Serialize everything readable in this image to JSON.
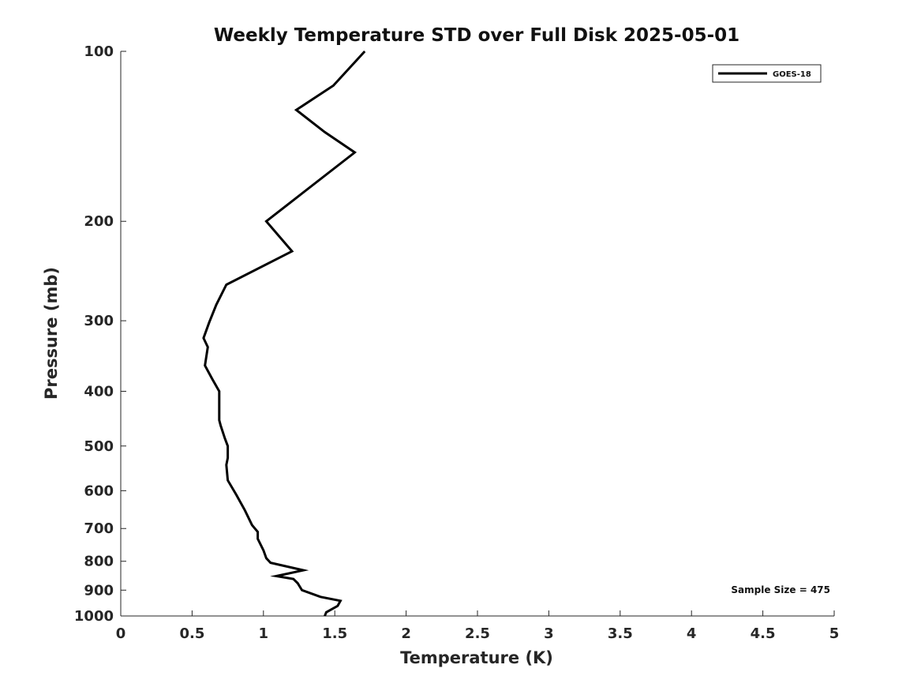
{
  "chart_data": {
    "type": "line",
    "title": "Weekly Temperature STD over Full Disk 2025-05-01",
    "xlabel": "Temperature (K)",
    "ylabel": "Pressure (mb)",
    "xlim": [
      0,
      5
    ],
    "ylim": [
      100,
      1000
    ],
    "yscale": "log",
    "y_inverted": true,
    "grid": false,
    "legend_position": "top-right",
    "x_ticks": [
      "0",
      "0.5",
      "1",
      "1.5",
      "2",
      "2.5",
      "3",
      "3.5",
      "4",
      "4.5",
      "5"
    ],
    "y_ticks": [
      "100",
      "200",
      "300",
      "400",
      "500",
      "600",
      "700",
      "800",
      "900",
      "1000"
    ],
    "annotation": "Sample Size = 475",
    "series": [
      {
        "name": "GOES-18",
        "color": "#000000",
        "x": [
          1.71,
          1.49,
          1.23,
          1.43,
          1.64,
          1.02,
          1.2,
          0.74,
          0.67,
          0.62,
          0.58,
          0.61,
          0.59,
          0.64,
          0.69,
          0.69,
          0.69,
          0.7,
          0.73,
          0.75,
          0.75,
          0.74,
          0.75,
          0.81,
          0.87,
          0.92,
          0.96,
          0.96,
          1.0,
          1.02,
          1.05,
          1.28,
          1.09,
          1.21,
          1.24,
          1.27,
          1.4,
          1.54,
          1.52,
          1.44,
          1.43
        ],
        "y": [
          100,
          115,
          127,
          139,
          151,
          200,
          226,
          259,
          281,
          302,
          322,
          334,
          360,
          380,
          400,
          424,
          450,
          460,
          485,
          500,
          525,
          540,
          575,
          610,
          650,
          690,
          710,
          730,
          765,
          790,
          805,
          830,
          850,
          860,
          875,
          900,
          925,
          940,
          960,
          985,
          1000
        ]
      }
    ]
  }
}
